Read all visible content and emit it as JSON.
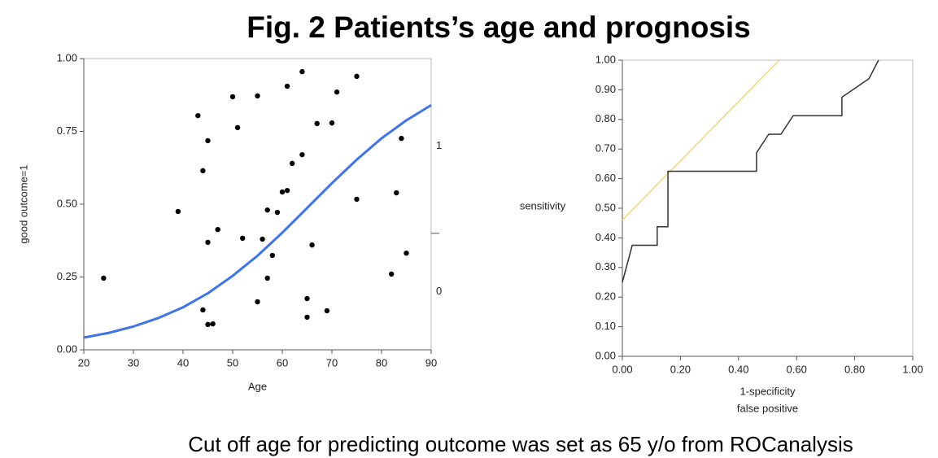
{
  "title": "Fig. 2 Patients’s age and prognosis",
  "caption": "Cut off age for predicting outcome was set as 65 y/o from ROCanalysis",
  "chart_data": [
    {
      "type": "scatter",
      "xlabel": "Age",
      "ylabel": "good outcome=1",
      "xlim": [
        20,
        90
      ],
      "xticks": [
        20,
        30,
        40,
        50,
        60,
        70,
        80,
        90
      ],
      "ylim": [
        0,
        1
      ],
      "yticks": [
        {
          "value": 0,
          "label": "0.00"
        },
        {
          "value": 0.25,
          "label": "0.25"
        },
        {
          "value": 0.5,
          "label": "0.50"
        },
        {
          "value": 0.75,
          "label": "0.75"
        },
        {
          "value": 1,
          "label": "1.00"
        }
      ],
      "y2lim": [
        0,
        1
      ],
      "y2ticks": [
        {
          "value": 0.2,
          "label": "0"
        },
        {
          "value": 0.7,
          "label": "1"
        }
      ],
      "y2_divider": 0.4,
      "series": [
        {
          "type": "scatter",
          "color": "#000000",
          "x": [
            24,
            39,
            43,
            44,
            45,
            44,
            45,
            45,
            46,
            47,
            50,
            51,
            52,
            55,
            55,
            56,
            57,
            57,
            58,
            59,
            60,
            61,
            61,
            62,
            64,
            64,
            65,
            65,
            66,
            67,
            69,
            70,
            71,
            75,
            75,
            82,
            83,
            84,
            85
          ],
          "values": [
            0.246,
            0.475,
            0.804,
            0.615,
            0.718,
            0.137,
            0.369,
            0.087,
            0.089,
            0.413,
            0.869,
            0.763,
            0.383,
            0.872,
            0.165,
            0.38,
            0.48,
            0.246,
            0.324,
            0.472,
            0.542,
            0.547,
            0.905,
            0.64,
            0.955,
            0.67,
            0.176,
            0.112,
            0.36,
            0.777,
            0.134,
            0.779,
            0.885,
            0.939,
            0.517,
            0.26,
            0.539,
            0.726,
            0.332
          ]
        },
        {
          "type": "line",
          "color": "#3f74e6",
          "x": [
            20,
            25,
            30,
            35,
            40,
            45,
            50,
            55,
            60,
            65,
            70,
            75,
            80,
            85,
            90
          ],
          "values": [
            0.042,
            0.058,
            0.08,
            0.109,
            0.146,
            0.194,
            0.254,
            0.323,
            0.402,
            0.487,
            0.572,
            0.653,
            0.726,
            0.788,
            0.84
          ]
        }
      ]
    },
    {
      "type": "line",
      "xlabel": [
        "1-specificity",
        "false positive"
      ],
      "ylabel": "sensitivity",
      "xlim": [
        0,
        1
      ],
      "xticks": [
        {
          "value": 0,
          "label": "0.00"
        },
        {
          "value": 0.2,
          "label": "0.20"
        },
        {
          "value": 0.4,
          "label": "0.40"
        },
        {
          "value": 0.6,
          "label": "0.60"
        },
        {
          "value": 0.8,
          "label": "0.80"
        },
        {
          "value": 1,
          "label": "1.00"
        }
      ],
      "ylim": [
        0,
        1
      ],
      "yticks": [
        {
          "value": 0,
          "label": "0.00"
        },
        {
          "value": 0.1,
          "label": "0.10"
        },
        {
          "value": 0.2,
          "label": "0.20"
        },
        {
          "value": 0.3,
          "label": "0.30"
        },
        {
          "value": 0.4,
          "label": "0.40"
        },
        {
          "value": 0.5,
          "label": "0.50"
        },
        {
          "value": 0.6,
          "label": "0.60"
        },
        {
          "value": 0.7,
          "label": "0.70"
        },
        {
          "value": 0.8,
          "label": "0.80"
        },
        {
          "value": 0.9,
          "label": "0.90"
        },
        {
          "value": 1,
          "label": "1.00"
        }
      ],
      "series": [
        {
          "type": "line",
          "color": "#f2d57a",
          "x": [
            0,
            0.54
          ],
          "values": [
            0.46,
            1.0
          ]
        },
        {
          "type": "line",
          "color": "#333333",
          "x": [
            0,
            0.034,
            0.12,
            0.12,
            0.157,
            0.157,
            0.462,
            0.462,
            0.504,
            0.546,
            0.588,
            0.756,
            0.756,
            0.849,
            0.882
          ],
          "values": [
            0.25,
            0.375,
            0.375,
            0.4375,
            0.4375,
            0.625,
            0.625,
            0.6875,
            0.75,
            0.75,
            0.8125,
            0.8125,
            0.875,
            0.9375,
            1.0
          ]
        }
      ]
    }
  ]
}
